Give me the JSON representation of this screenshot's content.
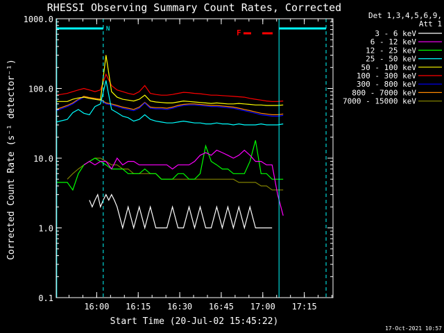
{
  "chart_data": {
    "type": "line",
    "title": "RHESSI Observing Summary Count Rates, Corrected",
    "xlabel": "Start Time (20-Jul-02 15:45:22)",
    "ylabel": "Corrected Count Rate (s⁻¹ detector⁻¹)",
    "yscale": "log",
    "ylim": [
      0.1,
      1000
    ],
    "xlim_minutes_after_start": [
      0,
      100
    ],
    "y_ticks": [
      "1000.0",
      "100.0",
      "10.0",
      "1.0",
      "0.1"
    ],
    "x_ticks": [
      "16:00",
      "16:15",
      "16:30",
      "16:45",
      "17:00",
      "17:15"
    ],
    "legend_header": [
      "Det 1,3,4,5,6,9,",
      "Att 1"
    ],
    "legend_position": "right",
    "timestamp": "17-Oct-2021 10:57",
    "markers": [
      {
        "label": "N",
        "color": "#00ffff"
      },
      {
        "label": "F",
        "color": "#ff0000"
      }
    ],
    "series": [
      {
        "name": "3 - 6 keV",
        "color": "#ffffff",
        "x": [
          12,
          13,
          14,
          15,
          16,
          17,
          18,
          19,
          20,
          21,
          22,
          24,
          26,
          28,
          30,
          32,
          34,
          36,
          38,
          40,
          42,
          44,
          46,
          48,
          50,
          52,
          54,
          56,
          58,
          60,
          62,
          64,
          66,
          68,
          70,
          72,
          74,
          76,
          78
        ],
        "y": [
          2.5,
          2.0,
          2.5,
          3.0,
          2.0,
          2.5,
          3.0,
          2.5,
          3.0,
          2.5,
          2.0,
          1.0,
          2.0,
          1.0,
          2.0,
          1.0,
          2.0,
          1.0,
          1.0,
          1.0,
          2.0,
          1.0,
          1.0,
          2.0,
          1.0,
          2.0,
          1.0,
          1.0,
          2.0,
          1.0,
          2.0,
          1.0,
          2.0,
          1.0,
          2.0,
          1.0,
          1.0,
          1.0,
          1.0
        ]
      },
      {
        "name": "6 - 12 keV",
        "color": "#ff00ff",
        "x": [
          10,
          12,
          14,
          16,
          18,
          20,
          22,
          24,
          26,
          28,
          30,
          32,
          34,
          36,
          38,
          40,
          42,
          44,
          46,
          48,
          50,
          52,
          54,
          56,
          58,
          60,
          62,
          64,
          66,
          68,
          70,
          72,
          74,
          76,
          78,
          80,
          82
        ],
        "y": [
          8,
          9,
          8,
          9,
          9,
          7,
          10,
          8,
          9,
          9,
          8,
          8,
          8,
          8,
          8,
          8,
          7,
          8,
          8,
          8,
          9,
          11,
          12,
          11,
          13,
          12,
          11,
          10,
          11,
          13,
          11,
          9,
          9,
          8,
          8,
          3,
          1.5
        ]
      },
      {
        "name": "12 - 25 keV",
        "color": "#00ff00",
        "x": [
          0,
          4,
          6,
          8,
          10,
          12,
          14,
          16,
          18,
          20,
          22,
          24,
          26,
          28,
          30,
          32,
          34,
          36,
          38,
          40,
          42,
          44,
          46,
          48,
          50,
          52,
          54,
          56,
          58,
          60,
          62,
          64,
          66,
          68,
          70,
          72,
          74,
          76,
          78,
          80,
          82
        ],
        "y": [
          4.5,
          4.5,
          3.5,
          6,
          8,
          9,
          10,
          9,
          8,
          7,
          7,
          7,
          6,
          6,
          6,
          7,
          6,
          6,
          5,
          5,
          5,
          6,
          6,
          5,
          5,
          6,
          15,
          9,
          8,
          7,
          7,
          6,
          6,
          6,
          9,
          18,
          6,
          6,
          5,
          5,
          5
        ]
      },
      {
        "name": "25 - 50 keV",
        "color": "#00ffff",
        "x": [
          0,
          4,
          6,
          8,
          10,
          12,
          14,
          16,
          18,
          20,
          22,
          24,
          26,
          28,
          30,
          32,
          34,
          36,
          38,
          40,
          42,
          44,
          46,
          48,
          50,
          52,
          54,
          56,
          58,
          60,
          62,
          64,
          66,
          68,
          70,
          72,
          74,
          76,
          78,
          80,
          82
        ],
        "y": [
          33,
          36,
          45,
          50,
          44,
          42,
          55,
          60,
          130,
          50,
          45,
          40,
          38,
          34,
          36,
          42,
          36,
          34,
          33,
          32,
          32,
          33,
          34,
          33,
          32,
          32,
          31,
          31,
          32,
          31,
          31,
          30,
          31,
          30,
          30,
          30,
          31,
          30,
          30,
          30,
          31
        ]
      },
      {
        "name": "50 - 100 keV",
        "color": "#ffff00",
        "x": [
          0,
          4,
          6,
          8,
          10,
          12,
          14,
          16,
          18,
          20,
          22,
          24,
          26,
          28,
          30,
          32,
          34,
          36,
          38,
          40,
          42,
          44,
          46,
          48,
          50,
          52,
          54,
          56,
          58,
          60,
          62,
          64,
          66,
          68,
          70,
          72,
          74,
          76,
          78,
          80,
          82
        ],
        "y": [
          65,
          65,
          70,
          73,
          75,
          72,
          70,
          68,
          300,
          90,
          75,
          70,
          68,
          66,
          70,
          80,
          66,
          64,
          63,
          62,
          62,
          64,
          66,
          65,
          64,
          63,
          62,
          61,
          62,
          61,
          60,
          60,
          61,
          60,
          59,
          58,
          58,
          57,
          57,
          57,
          58
        ]
      },
      {
        "name": "100 - 300 keV",
        "color": "#ff0000",
        "x": [
          0,
          4,
          6,
          8,
          10,
          12,
          14,
          16,
          18,
          20,
          22,
          24,
          26,
          28,
          30,
          32,
          34,
          36,
          38,
          40,
          42,
          44,
          46,
          48,
          50,
          52,
          54,
          56,
          58,
          60,
          62,
          64,
          66,
          68,
          70,
          72,
          74,
          76,
          78,
          80,
          82
        ],
        "y": [
          80,
          85,
          90,
          95,
          100,
          95,
          90,
          95,
          160,
          110,
          95,
          90,
          85,
          82,
          90,
          110,
          85,
          82,
          80,
          80,
          82,
          85,
          88,
          87,
          85,
          84,
          82,
          80,
          80,
          79,
          78,
          77,
          76,
          75,
          72,
          70,
          68,
          66,
          65,
          65,
          66
        ]
      },
      {
        "name": "300 - 800 keV",
        "color": "#0000ff",
        "x": [
          0,
          4,
          6,
          8,
          10,
          12,
          14,
          16,
          18,
          20,
          22,
          24,
          26,
          28,
          30,
          32,
          34,
          36,
          38,
          40,
          42,
          44,
          46,
          48,
          50,
          52,
          54,
          56,
          58,
          60,
          62,
          64,
          66,
          68,
          70,
          72,
          74,
          76,
          78,
          80,
          82
        ],
        "y": [
          48,
          55,
          60,
          68,
          75,
          72,
          70,
          68,
          60,
          58,
          55,
          52,
          50,
          48,
          52,
          62,
          52,
          51,
          51,
          50,
          52,
          55,
          57,
          58,
          58,
          57,
          56,
          55,
          55,
          54,
          53,
          52,
          50,
          48,
          46,
          44,
          42,
          41,
          40,
          40,
          41
        ]
      },
      {
        "name": "800 - 7000 keV",
        "color": "#ff8800",
        "x": [
          0,
          4,
          6,
          8,
          10,
          12,
          14,
          16,
          18,
          20,
          22,
          24,
          26,
          28,
          30,
          32,
          34,
          36,
          38,
          40,
          42,
          44,
          46,
          48,
          50,
          52,
          54,
          56,
          58,
          60,
          62,
          64,
          66,
          68,
          70,
          72,
          74,
          76,
          78,
          80,
          82
        ],
        "y": [
          50,
          57,
          62,
          70,
          77,
          74,
          72,
          70,
          62,
          60,
          57,
          54,
          52,
          50,
          54,
          63,
          54,
          53,
          53,
          52,
          54,
          57,
          59,
          60,
          60,
          59,
          58,
          57,
          57,
          56,
          55,
          54,
          52,
          50,
          48,
          46,
          44,
          43,
          42,
          42,
          43
        ]
      },
      {
        "name": "7000 - 15000 keV",
        "color": "#808000",
        "x": [
          4,
          6,
          8,
          10,
          12,
          14,
          16,
          18,
          20,
          22,
          24,
          26,
          28,
          30,
          32,
          34,
          36,
          38,
          40,
          42,
          44,
          46,
          48,
          50,
          52,
          54,
          56,
          58,
          60,
          62,
          64,
          66,
          68,
          70,
          72,
          74,
          76,
          78,
          80,
          82
        ],
        "y": [
          5,
          6,
          7,
          8,
          9,
          10,
          10,
          9,
          8,
          8,
          7,
          7,
          6,
          6,
          6,
          6,
          6,
          5,
          5,
          5,
          5,
          5,
          5,
          5,
          5,
          5,
          5,
          5,
          5,
          5,
          5,
          4.5,
          4.5,
          4.5,
          4.5,
          4,
          4,
          3.5,
          3.5,
          3.5
        ]
      }
    ]
  }
}
